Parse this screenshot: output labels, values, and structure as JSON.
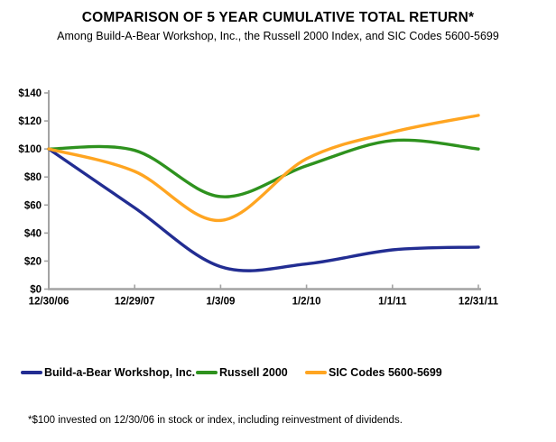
{
  "chart_data": {
    "type": "line",
    "title": "COMPARISON OF 5 YEAR CUMULATIVE TOTAL RETURN*",
    "subtitle": "Among Build-A-Bear Workshop, Inc., the Russell 2000 Index, and SIC Codes 5600-5699",
    "categories": [
      "12/30/06",
      "12/29/07",
      "1/3/09",
      "1/2/10",
      "1/1/11",
      "12/31/11"
    ],
    "series": [
      {
        "name": "Build-a-Bear Workshop, Inc.",
        "color": "#222D92",
        "values": [
          100,
          58,
          16,
          18,
          28,
          30
        ]
      },
      {
        "name": "Russell 2000",
        "color": "#2E921E",
        "values": [
          100,
          99,
          66,
          88,
          106,
          100
        ]
      },
      {
        "name": "SIC Codes 5600-5699",
        "color": "#FFA521",
        "values": [
          100,
          84,
          49,
          93,
          112,
          124
        ]
      }
    ],
    "ylim": [
      0,
      140
    ],
    "ytick_step": 20,
    "ytick_labels": [
      "$0",
      "$20",
      "$40",
      "$60",
      "$80",
      "$100",
      "$120",
      "$140"
    ],
    "xlabel": "",
    "ylabel": "",
    "grid": false,
    "smooth": true,
    "legend_position": "bottom",
    "axis_color": "#A3A3A3",
    "text_color": "#000000"
  },
  "footnote": "*$100 invested on 12/30/06 in stock or index, including reinvestment of dividends."
}
